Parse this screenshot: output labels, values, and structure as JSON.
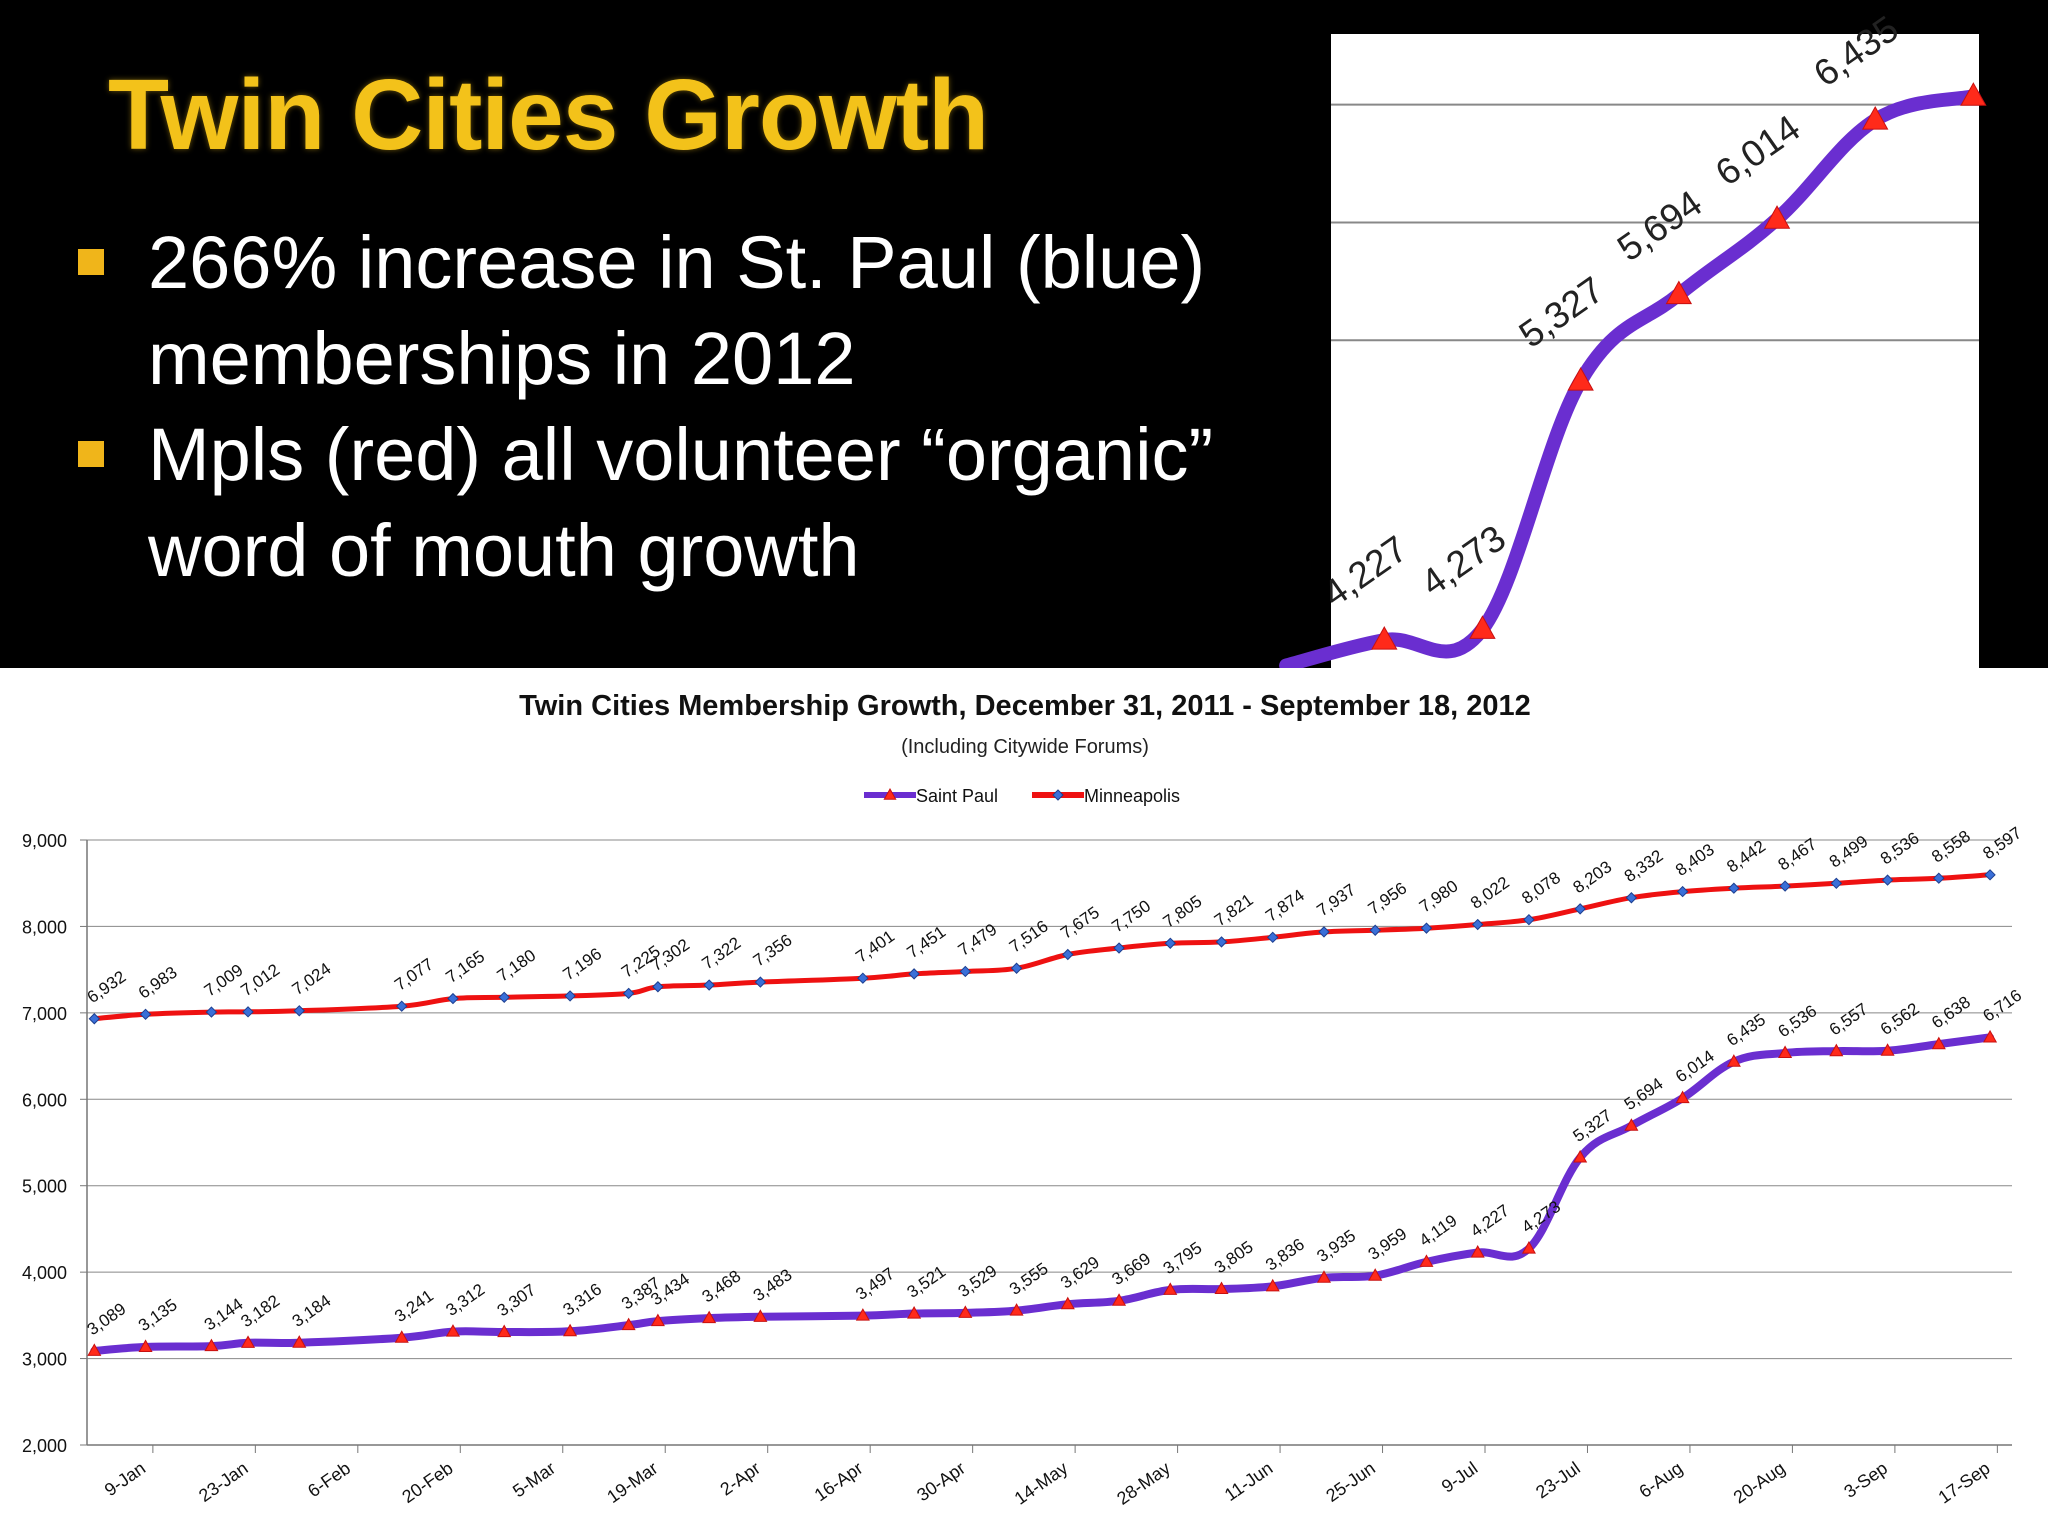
{
  "slide": {
    "title": "Twin Cities Growth",
    "bullets": [
      "266% increase in St. Paul (blue) memberships in 2012",
      "Mpls  (red) all volunteer “organic” word of mouth growth"
    ]
  },
  "colors": {
    "background": "#000000",
    "title": "#f3c21a",
    "bullet": "#f0b51a",
    "saint_paul": "#6a2ed0",
    "minneapolis": "#ee1111",
    "grid": "#888888",
    "chart_bg": "#ffffff"
  },
  "chart_data": [
    {
      "type": "line",
      "title": "Twin Cities Membership Growth, December 31, 2011 - September 18, 2012",
      "subtitle": "(Including Citywide Forums)",
      "legend": [
        "Saint Paul",
        "Minneapolis"
      ],
      "legend_position": "top-center",
      "xlabel": "",
      "ylabel": "",
      "ylim": [
        2000,
        9000
      ],
      "yticks": [
        "2,000",
        "3,000",
        "4,000",
        "5,000",
        "6,000",
        "7,000",
        "8,000",
        "9,000"
      ],
      "xlim_days": [
        -1,
        262
      ],
      "x_tick_days": [
        8,
        22,
        36,
        50,
        64,
        78,
        92,
        106,
        120,
        134,
        148,
        162,
        176,
        190,
        204,
        218,
        232,
        246,
        260
      ],
      "x_tick_labels": [
        "9-Jan",
        "23-Jan",
        "6-Feb",
        "20-Feb",
        "5-Mar",
        "19-Mar",
        "2-Apr",
        "16-Apr",
        "30-Apr",
        "14-May",
        "28-May",
        "11-Jun",
        "25-Jun",
        "9-Jul",
        "23-Jul",
        "6-Aug",
        "20-Aug",
        "3-Sep",
        "17-Sep"
      ],
      "grid": true,
      "series": [
        {
          "name": "Saint Paul",
          "marker": "triangle",
          "points": [
            {
              "day": 0,
              "value": 3089,
              "label": "3,089"
            },
            {
              "day": 7,
              "value": 3135,
              "label": "3,135"
            },
            {
              "day": 16,
              "value": 3144,
              "label": "3,144"
            },
            {
              "day": 21,
              "value": 3182,
              "label": "3,182"
            },
            {
              "day": 28,
              "value": 3184,
              "label": "3,184"
            },
            {
              "day": 42,
              "value": 3241,
              "label": "3,241"
            },
            {
              "day": 49,
              "value": 3312,
              "label": "3,312"
            },
            {
              "day": 56,
              "value": 3307,
              "label": "3,307"
            },
            {
              "day": 65,
              "value": 3316,
              "label": "3,316"
            },
            {
              "day": 73,
              "value": 3387,
              "label": "3,387"
            },
            {
              "day": 77,
              "value": 3434,
              "label": "3,434"
            },
            {
              "day": 84,
              "value": 3468,
              "label": "3,468"
            },
            {
              "day": 91,
              "value": 3483,
              "label": "3,483"
            },
            {
              "day": 105,
              "value": 3497,
              "label": "3,497"
            },
            {
              "day": 112,
              "value": 3521,
              "label": "3,521"
            },
            {
              "day": 119,
              "value": 3529,
              "label": "3,529"
            },
            {
              "day": 126,
              "value": 3555,
              "label": "3,555"
            },
            {
              "day": 133,
              "value": 3629,
              "label": "3,629"
            },
            {
              "day": 140,
              "value": 3669,
              "label": "3,669"
            },
            {
              "day": 147,
              "value": 3795,
              "label": "3,795"
            },
            {
              "day": 154,
              "value": 3805,
              "label": "3,805"
            },
            {
              "day": 161,
              "value": 3836,
              "label": "3,836"
            },
            {
              "day": 168,
              "value": 3935,
              "label": "3,935"
            },
            {
              "day": 175,
              "value": 3959,
              "label": "3,959"
            },
            {
              "day": 182,
              "value": 4119,
              "label": "4,119"
            },
            {
              "day": 189,
              "value": 4227,
              "label": "4,227"
            },
            {
              "day": 196,
              "value": 4273,
              "label": "4,273"
            },
            {
              "day": 203,
              "value": 5327,
              "label": "5,327"
            },
            {
              "day": 210,
              "value": 5694,
              "label": "5,694"
            },
            {
              "day": 217,
              "value": 6014,
              "label": "6,014"
            },
            {
              "day": 224,
              "value": 6435,
              "label": "6,435"
            },
            {
              "day": 231,
              "value": 6536,
              "label": "6,536"
            },
            {
              "day": 238,
              "value": 6557,
              "label": "6,557"
            },
            {
              "day": 245,
              "value": 6562,
              "label": "6,562"
            },
            {
              "day": 252,
              "value": 6638,
              "label": "6,638"
            },
            {
              "day": 259,
              "value": 6716,
              "label": "6,716"
            }
          ]
        },
        {
          "name": "Minneapolis",
          "marker": "diamond",
          "points": [
            {
              "day": 0,
              "value": 6932,
              "label": "6,932"
            },
            {
              "day": 7,
              "value": 6983,
              "label": "6,983"
            },
            {
              "day": 16,
              "value": 7009,
              "label": "7,009"
            },
            {
              "day": 21,
              "value": 7012,
              "label": "7,012"
            },
            {
              "day": 28,
              "value": 7024,
              "label": "7,024"
            },
            {
              "day": 42,
              "value": 7077,
              "label": "7,077"
            },
            {
              "day": 49,
              "value": 7165,
              "label": "7,165"
            },
            {
              "day": 56,
              "value": 7180,
              "label": "7,180"
            },
            {
              "day": 65,
              "value": 7196,
              "label": "7,196"
            },
            {
              "day": 73,
              "value": 7225,
              "label": "7,225"
            },
            {
              "day": 77,
              "value": 7302,
              "label": "7,302"
            },
            {
              "day": 84,
              "value": 7322,
              "label": "7,322"
            },
            {
              "day": 91,
              "value": 7356,
              "label": "7,356"
            },
            {
              "day": 105,
              "value": 7401,
              "label": "7,401"
            },
            {
              "day": 112,
              "value": 7451,
              "label": "7,451"
            },
            {
              "day": 119,
              "value": 7479,
              "label": "7,479"
            },
            {
              "day": 126,
              "value": 7516,
              "label": "7,516"
            },
            {
              "day": 133,
              "value": 7675,
              "label": "7,675"
            },
            {
              "day": 140,
              "value": 7750,
              "label": "7,750"
            },
            {
              "day": 147,
              "value": 7805,
              "label": "7,805"
            },
            {
              "day": 154,
              "value": 7821,
              "label": "7,821"
            },
            {
              "day": 161,
              "value": 7874,
              "label": "7,874"
            },
            {
              "day": 168,
              "value": 7937,
              "label": "7,937"
            },
            {
              "day": 175,
              "value": 7956,
              "label": "7,956"
            },
            {
              "day": 182,
              "value": 7980,
              "label": "7,980"
            },
            {
              "day": 189,
              "value": 8022,
              "label": "8,022"
            },
            {
              "day": 196,
              "value": 8078,
              "label": "8,078"
            },
            {
              "day": 203,
              "value": 8203,
              "label": "8,203"
            },
            {
              "day": 210,
              "value": 8332,
              "label": "8,332"
            },
            {
              "day": 217,
              "value": 8403,
              "label": "8,403"
            },
            {
              "day": 224,
              "value": 8442,
              "label": "8,442"
            },
            {
              "day": 231,
              "value": 8467,
              "label": "8,467"
            },
            {
              "day": 238,
              "value": 8499,
              "label": "8,499"
            },
            {
              "day": 245,
              "value": 8536,
              "label": "8,536"
            },
            {
              "day": 252,
              "value": 8558,
              "label": "8,558"
            },
            {
              "day": 259,
              "value": 8597,
              "label": "8,597"
            }
          ]
        }
      ]
    },
    {
      "type": "line",
      "title": "",
      "subtitle": "",
      "description_role": "zoomed inset of Saint Paul surge",
      "series": [
        {
          "name": "Saint Paul",
          "marker": "triangle",
          "points": [
            {
              "day": 182,
              "value": 4119,
              "label": ""
            },
            {
              "day": 189,
              "value": 4227,
              "label": "4,227"
            },
            {
              "day": 196,
              "value": 4273,
              "label": "4,273"
            },
            {
              "day": 203,
              "value": 5327,
              "label": "5,327"
            },
            {
              "day": 210,
              "value": 5694,
              "label": "5,694"
            },
            {
              "day": 217,
              "value": 6014,
              "label": "6,014"
            },
            {
              "day": 224,
              "value": 6435,
              "label": "6,435"
            },
            {
              "day": 231,
              "value": 6536,
              "label": ""
            }
          ]
        }
      ],
      "xlim_days": [
        185.2,
        231.4
      ],
      "ylim": [
        4100,
        6800
      ],
      "gridlines": [
        6500,
        6000,
        5500
      ]
    }
  ]
}
